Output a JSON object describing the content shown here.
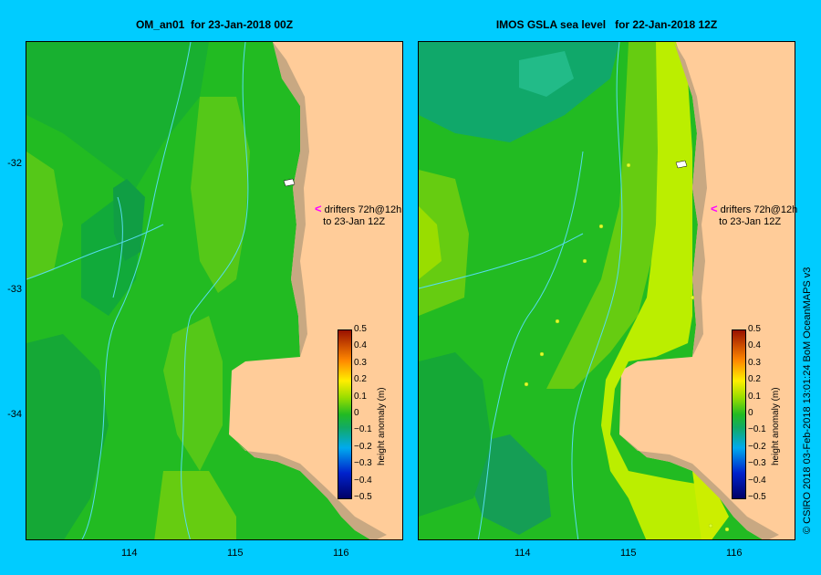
{
  "panels": {
    "left": {
      "title": "OM_an01  for 23-Jan-2018 00Z"
    },
    "right": {
      "title": "IMOS GSLA sea level   for 22-Jan-2018 12Z"
    }
  },
  "axes": {
    "lat_labels": [
      "-32",
      "-33",
      "-34"
    ],
    "lon_labels": [
      "114",
      "115",
      "116"
    ]
  },
  "drifters_note": {
    "line1": "drifters 72h@12h",
    "line2": "to 23-Jan 12Z",
    "arrow": "<"
  },
  "colorbar": {
    "title": "height anomaly (m)",
    "ticks": [
      "0.5",
      "0.4",
      "0.3",
      "0.2",
      "0.1",
      "0",
      "−0.1",
      "−0.2",
      "−0.3",
      "−0.4",
      "−0.5"
    ],
    "range": [
      -0.5,
      0.5
    ]
  },
  "credit": "© CSIRO 2018   03-Feb-2018 13:01:24 BoM OceanMAPS v3",
  "colors": {
    "background": "#00ccff",
    "land": "#ffcc99",
    "shelf": "#c8a882",
    "green_dark": "#11aa3a",
    "green_mid": "#22bb22",
    "green_light": "#66cc11",
    "yellow_green": "#bbee00",
    "contour": "#55ddee"
  }
}
